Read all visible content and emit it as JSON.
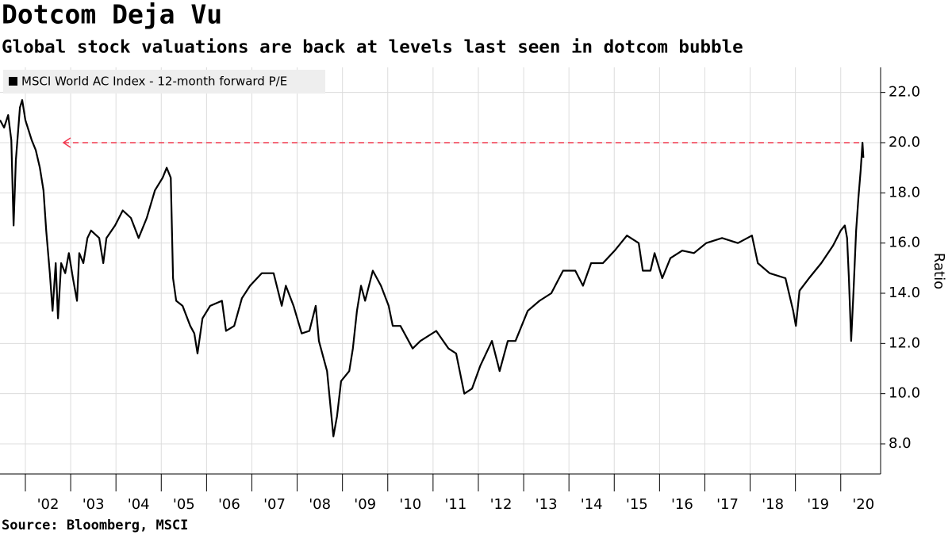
{
  "chart_data": {
    "type": "line",
    "title": "Dotcom Deja Vu",
    "subtitle": "Global stock valuations are back at levels last seen in dotcom bubble",
    "source": "Source: Bloomberg, MSCI",
    "y_axis_label": "Ratio",
    "grid": true,
    "legend": "top-left",
    "xlim": [
      2001.44,
      2020.88
    ],
    "ylim": [
      6.8,
      23.0
    ],
    "yticks": [
      {
        "value": 8,
        "label": "8.0"
      },
      {
        "value": 10,
        "label": "10.0"
      },
      {
        "value": 12,
        "label": "12.0"
      },
      {
        "value": 14,
        "label": "14.0"
      },
      {
        "value": 16,
        "label": "16.0"
      },
      {
        "value": 18,
        "label": "18.0"
      },
      {
        "value": 20,
        "label": "20.0"
      },
      {
        "value": 22,
        "label": "22.0"
      }
    ],
    "xticks": [
      {
        "value": 2002,
        "label": "'02"
      },
      {
        "value": 2003,
        "label": "'03"
      },
      {
        "value": 2004,
        "label": "'04"
      },
      {
        "value": 2005,
        "label": "'05"
      },
      {
        "value": 2006,
        "label": "'06"
      },
      {
        "value": 2007,
        "label": "'07"
      },
      {
        "value": 2008,
        "label": "'08"
      },
      {
        "value": 2009,
        "label": "'09"
      },
      {
        "value": 2010,
        "label": "'10"
      },
      {
        "value": 2011,
        "label": "'11"
      },
      {
        "value": 2012,
        "label": "'12"
      },
      {
        "value": 2013,
        "label": "'13"
      },
      {
        "value": 2014,
        "label": "'14"
      },
      {
        "value": 2015,
        "label": "'15"
      },
      {
        "value": 2016,
        "label": "'16"
      },
      {
        "value": 2017,
        "label": "'17"
      },
      {
        "value": 2018,
        "label": "'18"
      },
      {
        "value": 2019,
        "label": "'19"
      },
      {
        "value": 2020,
        "label": "'20"
      }
    ],
    "reference_line": {
      "y": 20,
      "x": [
        2002.84,
        2020.48
      ],
      "color": "#f0384f"
    },
    "x": [
      2001.44,
      2001.53,
      2001.62,
      2001.69,
      2001.74,
      2001.79,
      2001.88,
      2001.93,
      2002.0,
      2002.14,
      2002.23,
      2002.32,
      2002.4,
      2002.46,
      2002.54,
      2002.6,
      2002.67,
      2002.72,
      2002.79,
      2002.88,
      2002.96,
      2003.05,
      2003.14,
      2003.19,
      2003.28,
      2003.37,
      2003.45,
      2003.63,
      2003.72,
      2003.79,
      2003.98,
      2004.15,
      2004.33,
      2004.5,
      2004.68,
      2004.86,
      2005.03,
      2005.12,
      2005.21,
      2005.26,
      2005.33,
      2005.47,
      2005.64,
      2005.73,
      2005.8,
      2005.91,
      2006.08,
      2006.34,
      2006.43,
      2006.61,
      2006.78,
      2006.96,
      2007.22,
      2007.48,
      2007.66,
      2007.75,
      2007.92,
      2008.1,
      2008.27,
      2008.41,
      2008.48,
      2008.66,
      2008.8,
      2008.88,
      2008.97,
      2009.15,
      2009.23,
      2009.32,
      2009.41,
      2009.5,
      2009.67,
      2009.85,
      2010.02,
      2010.11,
      2010.28,
      2010.55,
      2010.72,
      2011.07,
      2011.34,
      2011.51,
      2011.69,
      2011.86,
      2012.04,
      2012.3,
      2012.47,
      2012.65,
      2012.82,
      2013.09,
      2013.35,
      2013.61,
      2013.87,
      2014.14,
      2014.31,
      2014.49,
      2014.75,
      2015.01,
      2015.28,
      2015.54,
      2015.63,
      2015.8,
      2015.89,
      2016.06,
      2016.24,
      2016.5,
      2016.76,
      2017.03,
      2017.38,
      2017.73,
      2018.04,
      2018.17,
      2018.43,
      2018.78,
      2018.95,
      2019.01,
      2019.09,
      2019.3,
      2019.57,
      2019.83,
      2020.0,
      2020.09,
      2020.14,
      2020.18,
      2020.23,
      2020.28,
      2020.34,
      2020.39,
      2020.44,
      2020.48,
      2020.5
    ],
    "series": [
      {
        "name": "MSCI World AC Index - 12-month forward P/E",
        "color": "#000000",
        "values": [
          20.9,
          20.6,
          21.1,
          20.1,
          16.7,
          19.3,
          21.4,
          21.7,
          20.9,
          20.1,
          19.7,
          19.0,
          18.1,
          16.5,
          14.8,
          13.3,
          15.2,
          13.0,
          15.2,
          14.8,
          15.6,
          14.6,
          13.7,
          15.6,
          15.2,
          16.2,
          16.5,
          16.2,
          15.2,
          16.2,
          16.7,
          17.3,
          17.0,
          16.2,
          17.0,
          18.1,
          18.6,
          19.0,
          18.6,
          14.6,
          13.7,
          13.5,
          12.7,
          12.4,
          11.6,
          13.0,
          13.5,
          13.7,
          12.5,
          12.7,
          13.8,
          14.3,
          14.8,
          14.8,
          13.5,
          14.3,
          13.5,
          12.4,
          12.5,
          13.5,
          12.1,
          10.9,
          8.3,
          9.1,
          10.5,
          10.9,
          11.8,
          13.3,
          14.3,
          13.7,
          14.9,
          14.3,
          13.5,
          12.7,
          12.7,
          11.8,
          12.1,
          12.5,
          11.8,
          11.6,
          10.0,
          10.2,
          11.1,
          12.1,
          10.9,
          12.1,
          12.1,
          13.3,
          13.7,
          14.0,
          14.9,
          14.9,
          14.3,
          15.2,
          15.2,
          15.7,
          16.3,
          16.0,
          14.9,
          14.9,
          15.6,
          14.6,
          15.4,
          15.7,
          15.6,
          16.0,
          16.2,
          16.0,
          16.3,
          15.2,
          14.8,
          14.6,
          13.3,
          12.7,
          14.1,
          14.6,
          15.2,
          15.9,
          16.5,
          16.7,
          16.2,
          14.6,
          12.1,
          14.0,
          16.5,
          17.8,
          18.9,
          20.0,
          19.4
        ]
      }
    ]
  }
}
